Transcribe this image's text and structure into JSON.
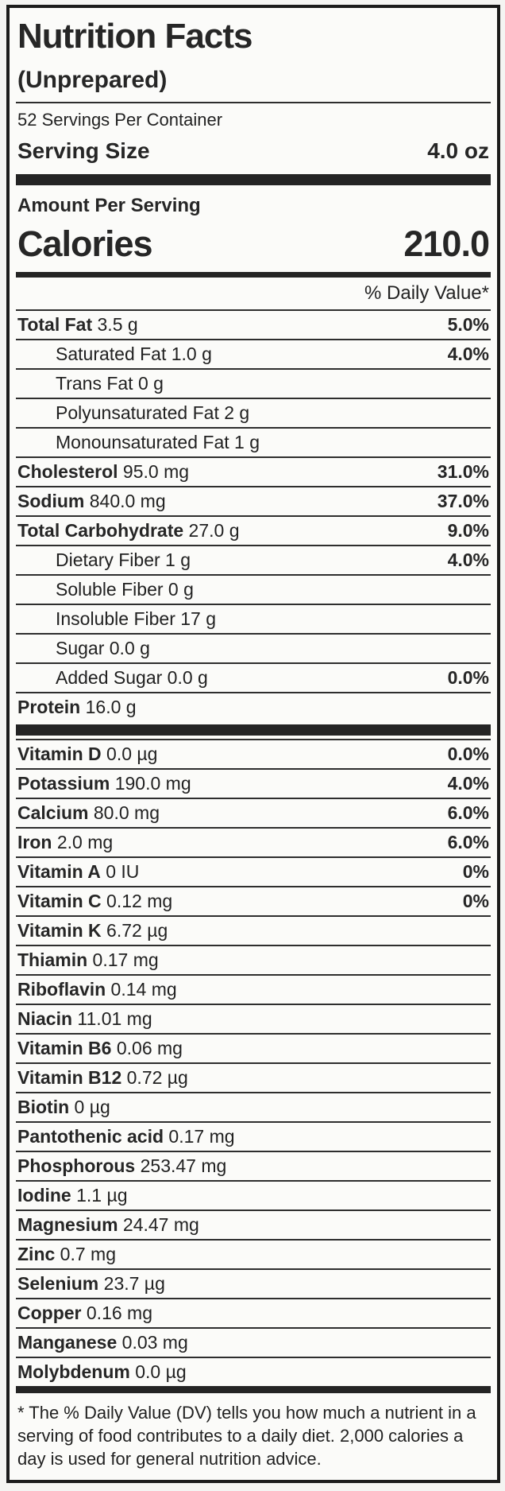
{
  "label": {
    "title": "Nutrition Facts",
    "subtitle": "(Unprepared)",
    "servings_per_container": "52 Servings Per Container",
    "serving_size_label": "Serving Size",
    "serving_size_value": "4.0 oz",
    "amount_per_serving": "Amount Per Serving",
    "calories_label": "Calories",
    "calories_value": "210.0",
    "daily_value_header": "% Daily Value*",
    "nutrients": [
      {
        "name": "Total Fat",
        "amount": "3.5 g",
        "dv": "5.0%",
        "indent": 0
      },
      {
        "name": "Saturated Fat",
        "amount": "1.0 g",
        "dv": "4.0%",
        "indent": 1
      },
      {
        "name": "Trans Fat",
        "amount": "0 g",
        "dv": "",
        "indent": 1
      },
      {
        "name": "Polyunsaturated Fat",
        "amount": "2 g",
        "dv": "",
        "indent": 1
      },
      {
        "name": "Monounsaturated Fat",
        "amount": "1 g",
        "dv": "",
        "indent": 1
      },
      {
        "name": "Cholesterol",
        "amount": "95.0 mg",
        "dv": "31.0%",
        "indent": 0
      },
      {
        "name": "Sodium",
        "amount": "840.0 mg",
        "dv": "37.0%",
        "indent": 0
      },
      {
        "name": "Total Carbohydrate",
        "amount": "27.0 g",
        "dv": "9.0%",
        "indent": 0
      },
      {
        "name": "Dietary Fiber",
        "amount": "1 g",
        "dv": "4.0%",
        "indent": 1
      },
      {
        "name": "Soluble Fiber",
        "amount": "0 g",
        "dv": "",
        "indent": 1
      },
      {
        "name": "Insoluble Fiber",
        "amount": "17 g",
        "dv": "",
        "indent": 1
      },
      {
        "name": "Sugar",
        "amount": "0.0 g",
        "dv": "",
        "indent": 1
      },
      {
        "name": "Added Sugar",
        "amount": "0.0 g",
        "dv": "0.0%",
        "indent": 1
      },
      {
        "name": "Protein",
        "amount": "16.0 g",
        "dv": "",
        "indent": 0
      }
    ],
    "micronutrients": [
      {
        "name": "Vitamin D",
        "amount": "0.0 µg",
        "dv": "0.0%"
      },
      {
        "name": "Potassium",
        "amount": "190.0 mg",
        "dv": "4.0%"
      },
      {
        "name": "Calcium",
        "amount": "80.0 mg",
        "dv": "6.0%"
      },
      {
        "name": "Iron",
        "amount": "2.0 mg",
        "dv": "6.0%"
      },
      {
        "name": "Vitamin A",
        "amount": "0 IU",
        "dv": "0%"
      },
      {
        "name": "Vitamin C",
        "amount": "0.12 mg",
        "dv": "0%"
      },
      {
        "name": "Vitamin K",
        "amount": "6.72 µg",
        "dv": ""
      },
      {
        "name": "Thiamin",
        "amount": "0.17 mg",
        "dv": ""
      },
      {
        "name": "Riboflavin",
        "amount": "0.14 mg",
        "dv": ""
      },
      {
        "name": "Niacin",
        "amount": "11.01 mg",
        "dv": ""
      },
      {
        "name": "Vitamin B6",
        "amount": "0.06 mg",
        "dv": ""
      },
      {
        "name": "Vitamin B12",
        "amount": "0.72 µg",
        "dv": ""
      },
      {
        "name": "Biotin",
        "amount": "0 µg",
        "dv": ""
      },
      {
        "name": "Pantothenic acid",
        "amount": "0.17 mg",
        "dv": ""
      },
      {
        "name": "Phosphorous",
        "amount": "253.47 mg",
        "dv": ""
      },
      {
        "name": "Iodine",
        "amount": "1.1 µg",
        "dv": ""
      },
      {
        "name": "Magnesium",
        "amount": "24.47 mg",
        "dv": ""
      },
      {
        "name": "Zinc",
        "amount": "0.7 mg",
        "dv": ""
      },
      {
        "name": "Selenium",
        "amount": "23.7 µg",
        "dv": ""
      },
      {
        "name": "Copper",
        "amount": "0.16 mg",
        "dv": ""
      },
      {
        "name": "Manganese",
        "amount": "0.03 mg",
        "dv": ""
      },
      {
        "name": "Molybdenum",
        "amount": "0.0 µg",
        "dv": ""
      }
    ],
    "footnote": "* The % Daily Value (DV) tells you how much a nutrient in a serving of food contributes to a daily diet. 2,000 calories a day is used for general nutrition advice.",
    "colors": {
      "text": "#212121",
      "rule": "#2e2e2e",
      "bar": "#242424",
      "background": "#fbfbf9",
      "page_background": "#f4f4f2"
    }
  }
}
